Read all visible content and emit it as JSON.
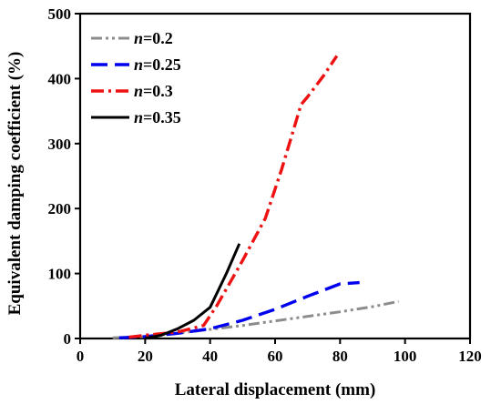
{
  "chart_data": {
    "type": "line",
    "title": "",
    "xlabel": "Lateral displacement (mm)",
    "ylabel": "Equivalent damping coefficient (%)",
    "xlim": [
      0,
      120
    ],
    "ylim": [
      0,
      500
    ],
    "xticks": [
      0,
      20,
      40,
      60,
      80,
      100,
      120
    ],
    "yticks": [
      0,
      100,
      200,
      300,
      400,
      500
    ],
    "grid": false,
    "legend_position": "top-left",
    "series": [
      {
        "name": "n=0.2",
        "name_var": "n",
        "name_rest": "=0.2",
        "color": "#8c8c8c",
        "dash": "dash-dot-dot",
        "x": [
          10,
          20,
          30,
          40,
          50,
          60,
          70,
          80,
          90,
          98
        ],
        "y": [
          1,
          3,
          8,
          14,
          20,
          27,
          34,
          41,
          49,
          57
        ]
      },
      {
        "name": "n=0.25",
        "name_var": "n",
        "name_rest": "=0.25",
        "color": "#0000ee",
        "dash": "long-dash",
        "x": [
          12,
          20,
          30,
          40,
          50,
          60,
          70,
          80,
          86
        ],
        "y": [
          1,
          3,
          8,
          15,
          28,
          45,
          65,
          84,
          86
        ]
      },
      {
        "name": "n=0.3",
        "name_var": "n",
        "name_rest": "=0.3",
        "color": "#ee1111",
        "dash": "dash-dot",
        "x": [
          15,
          20,
          30,
          38,
          42,
          50,
          57,
          62,
          68,
          70,
          75,
          79
        ],
        "y": [
          2,
          5,
          10,
          20,
          50,
          120,
          185,
          260,
          360,
          372,
          405,
          435
        ]
      },
      {
        "name": "n=0.35",
        "name_var": "n",
        "name_rest": "=0.35",
        "color": "#000000",
        "dash": "solid",
        "x": [
          20,
          25,
          30,
          35,
          40,
          45,
          49
        ],
        "y": [
          0,
          5,
          15,
          28,
          48,
          100,
          146
        ]
      }
    ]
  }
}
